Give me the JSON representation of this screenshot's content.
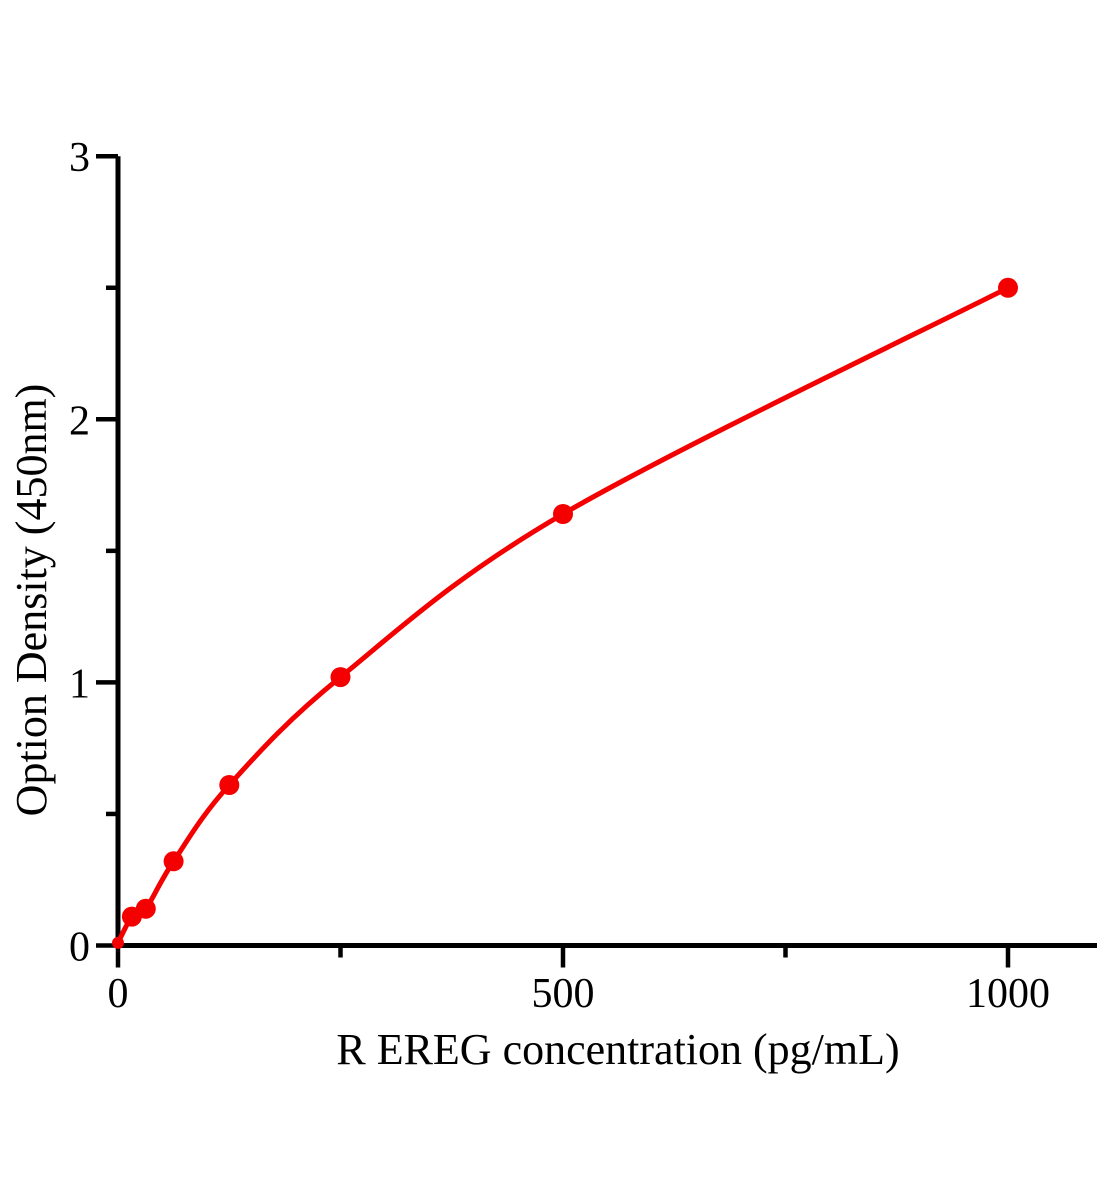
{
  "figure": {
    "background": "#ffffff"
  },
  "chart_data": {
    "type": "line",
    "title": "",
    "xlabel": "R EREG concentration（pg/mL）",
    "ylabel": "Option Density（450nm）",
    "x": [
      0,
      15.6,
      31.2,
      62.5,
      125,
      250,
      500,
      1000
    ],
    "y": [
      0.01,
      0.11,
      0.14,
      0.32,
      0.61,
      1.02,
      1.64,
      2.5
    ],
    "xlim": [
      0,
      1100
    ],
    "ylim": [
      0,
      3
    ],
    "x_major_ticks": [
      0,
      500,
      1000
    ],
    "x_minor_ticks": [
      250,
      750
    ],
    "y_major_ticks": [
      0,
      1,
      2,
      3
    ],
    "y_minor_ticks": [
      0.5,
      1.5,
      2.5
    ],
    "grid": false,
    "legend": "none",
    "marker": "circle",
    "line_color": "#f40000",
    "marker_color": "#f40000",
    "axis_color": "#000000"
  }
}
